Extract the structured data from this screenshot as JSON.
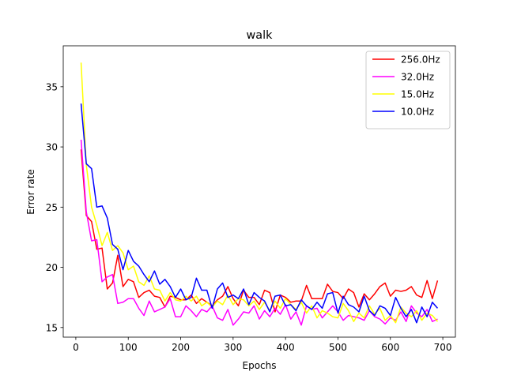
{
  "chart_data": {
    "type": "line",
    "title": "walk",
    "xlabel": "Epochs",
    "ylabel": "Error rate",
    "xlim": [
      -24,
      724
    ],
    "ylim": [
      14.2,
      38.4
    ],
    "xticks": [
      0,
      100,
      200,
      300,
      400,
      500,
      600,
      700
    ],
    "yticks": [
      15,
      20,
      25,
      30,
      35
    ],
    "grid": false,
    "legend_position": "top-right",
    "x": [
      10,
      20,
      30,
      40,
      50,
      60,
      70,
      80,
      90,
      100,
      110,
      120,
      130,
      140,
      150,
      160,
      170,
      180,
      190,
      200,
      210,
      220,
      230,
      240,
      250,
      260,
      270,
      280,
      290,
      300,
      310,
      320,
      330,
      340,
      350,
      360,
      370,
      380,
      390,
      400,
      410,
      420,
      430,
      440,
      450,
      460,
      470,
      480,
      490,
      500,
      510,
      520,
      530,
      540,
      550,
      560,
      570,
      580,
      590,
      600,
      610,
      620,
      630,
      640,
      650,
      660,
      670,
      680,
      690
    ],
    "series": [
      {
        "name": "256.0Hz",
        "color": "#ff0000",
        "values": [
          29.8,
          24.3,
          23.8,
          21.5,
          21.6,
          18.2,
          18.7,
          21.0,
          18.4,
          19.0,
          18.8,
          17.5,
          17.9,
          18.1,
          17.6,
          17.5,
          16.7,
          17.6,
          17.5,
          17.3,
          17.3,
          17.7,
          17.0,
          17.4,
          17.1,
          16.8,
          17.3,
          17.6,
          18.4,
          17.4,
          16.8,
          18.1,
          17.5,
          17.5,
          16.9,
          18.1,
          17.9,
          16.3,
          17.7,
          17.5,
          17.1,
          17.2,
          17.2,
          18.5,
          17.4,
          17.4,
          17.4,
          18.6,
          18.0,
          17.9,
          17.4,
          18.2,
          17.9,
          16.7,
          17.8,
          17.3,
          17.8,
          18.4,
          18.7,
          17.6,
          18.1,
          18.0,
          18.1,
          18.4,
          17.7,
          17.5,
          18.9,
          17.4,
          18.9
        ]
      },
      {
        "name": "32.0Hz",
        "color": "#ff00ff",
        "values": [
          30.6,
          24.6,
          22.2,
          22.3,
          18.8,
          19.2,
          19.4,
          17.0,
          17.1,
          17.4,
          17.4,
          16.6,
          16.0,
          17.2,
          16.3,
          16.5,
          16.7,
          17.4,
          15.9,
          15.9,
          16.8,
          16.4,
          15.9,
          16.5,
          16.3,
          16.8,
          15.8,
          15.6,
          16.5,
          15.2,
          15.7,
          16.3,
          16.2,
          16.8,
          15.7,
          16.4,
          15.9,
          16.6,
          16.1,
          16.9,
          15.7,
          16.3,
          15.2,
          16.8,
          16.5,
          16.6,
          15.8,
          16.3,
          16.8,
          16.3,
          15.6,
          16.0,
          15.9,
          15.8,
          15.6,
          16.4,
          15.9,
          15.7,
          15.3,
          15.8,
          15.6,
          16.3,
          15.5,
          16.8,
          16.2,
          15.9,
          16.5,
          15.5,
          15.7
        ]
      },
      {
        "name": "15.0Hz",
        "color": "#ffff00",
        "values": [
          37.0,
          28.5,
          25.0,
          23.5,
          21.8,
          22.9,
          21.4,
          21.8,
          21.2,
          19.8,
          20.1,
          18.8,
          18.5,
          19.3,
          18.2,
          18.1,
          17.2,
          17.9,
          17.3,
          17.2,
          17.6,
          17.2,
          17.6,
          16.8,
          17.1,
          16.7,
          17.2,
          16.9,
          17.7,
          16.9,
          17.4,
          17.3,
          16.8,
          17.2,
          16.5,
          17.1,
          16.4,
          17.2,
          16.6,
          17.4,
          16.9,
          16.5,
          17.1,
          16.2,
          16.8,
          15.8,
          16.4,
          16.2,
          15.9,
          15.8,
          17.0,
          16.4,
          15.5,
          16.2,
          15.8,
          16.8,
          16.1,
          16.6,
          15.6,
          16.0,
          15.4,
          16.7,
          16.2,
          15.9,
          16.4,
          15.6,
          16.2,
          16.0,
          15.5
        ]
      },
      {
        "name": "10.0Hz",
        "color": "#0000ff",
        "values": [
          33.6,
          28.6,
          28.2,
          25.0,
          25.1,
          24.1,
          21.9,
          21.5,
          19.8,
          21.4,
          20.5,
          20.1,
          19.4,
          18.8,
          19.7,
          18.6,
          19.0,
          18.4,
          17.5,
          18.2,
          17.3,
          17.5,
          19.1,
          18.1,
          18.1,
          16.6,
          18.2,
          18.7,
          17.5,
          17.7,
          17.4,
          18.2,
          16.9,
          17.9,
          17.5,
          17.2,
          16.3,
          17.6,
          17.7,
          16.8,
          16.9,
          16.4,
          17.3,
          16.8,
          16.5,
          17.1,
          16.6,
          17.8,
          17.9,
          16.2,
          17.6,
          16.9,
          16.7,
          16.3,
          17.6,
          16.4,
          16.0,
          16.8,
          16.6,
          16.0,
          17.5,
          16.6,
          15.9,
          16.5,
          15.4,
          16.7,
          15.9,
          17.1,
          16.6
        ]
      }
    ]
  }
}
